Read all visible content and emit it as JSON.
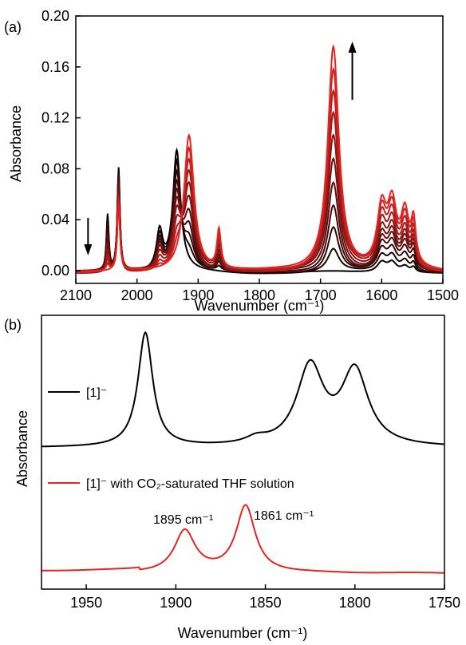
{
  "chart_data": [
    {
      "panel_label": "(a)",
      "type": "line",
      "xlabel": "Wavenumber (cm⁻¹)",
      "ylabel": "Absorbance",
      "xlim": [
        2100,
        1500
      ],
      "ylim": [
        -0.01,
        0.2
      ],
      "x_reversed": true,
      "x_ticks": [
        2100,
        2000,
        1900,
        1800,
        1700,
        1600,
        1500
      ],
      "y_ticks": [
        0.0,
        0.04,
        0.08,
        0.12,
        0.16,
        0.2
      ],
      "y_tick_labels": [
        "0.00",
        "0.04",
        "0.08",
        "0.12",
        "0.16",
        "0.20"
      ],
      "grid": false,
      "series_count": 11,
      "start_color": "#000000",
      "end_color": "#e52421",
      "peaks": [
        {
          "center": 2048,
          "width": 2.4,
          "start": 0.045,
          "end": 0.0
        },
        {
          "center": 2030,
          "width": 2.6,
          "start": 0.082,
          "end": 0.052
        },
        {
          "center": 1963,
          "width": 6.0,
          "start": 0.03,
          "end": 0.0
        },
        {
          "center": 1935,
          "width": 7.5,
          "start": 0.094,
          "end": 0.0
        },
        {
          "center": 1915,
          "width": 10.0,
          "start": 0.0,
          "end": 0.108
        },
        {
          "center": 1866,
          "width": 4.0,
          "start": 0.0,
          "end": 0.031
        },
        {
          "center": 1679,
          "width": 11.0,
          "start": 0.0,
          "end": 0.177
        },
        {
          "center": 1600,
          "width": 9.0,
          "start": 0.008,
          "end": 0.045
        },
        {
          "center": 1583,
          "width": 9.0,
          "start": 0.008,
          "end": 0.046
        },
        {
          "center": 1562,
          "width": 8.0,
          "start": 0.005,
          "end": 0.04
        },
        {
          "center": 1548,
          "width": 4.5,
          "start": 0.004,
          "end": 0.032
        }
      ],
      "decreasing_arrow_x": 2080,
      "increasing_arrow_x": 1648
    },
    {
      "panel_label": "(b)",
      "type": "line",
      "xlabel": "Wavenumber (cm⁻¹)",
      "ylabel": "Absorbance",
      "xlim": [
        1975,
        1750
      ],
      "x_reversed": true,
      "x_ticks": [
        1950,
        1900,
        1850,
        1800,
        1750
      ],
      "grid": false,
      "series": [
        {
          "name": "[1]⁻",
          "color": "#000000",
          "peaks": [
            {
              "center": 1917,
              "width": 5.0,
              "height": 1.0
            },
            {
              "center": 1855,
              "width": 7.0,
              "height": 0.05
            },
            {
              "center": 1825,
              "width": 9.0,
              "height": 0.69
            },
            {
              "center": 1800,
              "width": 9.0,
              "height": 0.65
            }
          ]
        },
        {
          "name": "[1]⁻  with CO₂-saturated THF solution",
          "color": "#e52421",
          "peaks": [
            {
              "center": 1895,
              "width": 7.0,
              "height": 0.55
            },
            {
              "center": 1861,
              "width": 6.5,
              "height": 0.88
            }
          ]
        }
      ],
      "annotations": [
        {
          "text": "1895 cm⁻¹",
          "x": 1895
        },
        {
          "text": "1861 cm⁻¹",
          "x": 1861
        }
      ]
    }
  ]
}
